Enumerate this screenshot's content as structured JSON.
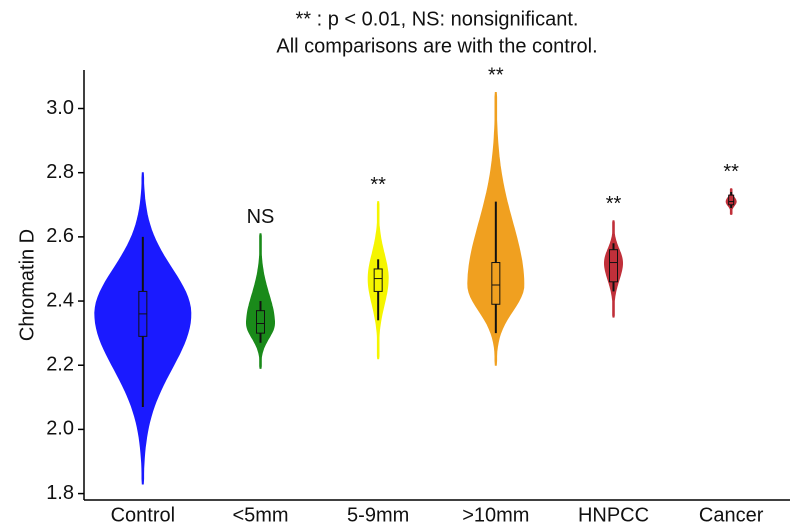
{
  "chart_data": {
    "type": "violin",
    "title": [
      "** : p < 0.01, NS: nonsignificant.",
      "All comparisons are with the control."
    ],
    "y_label": "Chromatin D",
    "categories": [
      "Control",
      "<5mm",
      "5-9mm",
      ">10mm",
      "HNPCC",
      "Cancer"
    ],
    "violins": [
      {
        "min": 1.83,
        "max": 2.8,
        "whislo": 2.07,
        "q1": 2.29,
        "median": 2.36,
        "q3": 2.43,
        "whishi": 2.6,
        "color": "#1a1aff"
      },
      {
        "min": 2.19,
        "max": 2.61,
        "whislo": 2.27,
        "q1": 2.3,
        "median": 2.33,
        "q3": 2.37,
        "whishi": 2.4,
        "color": "#1a8a1a"
      },
      {
        "min": 2.22,
        "max": 2.71,
        "whislo": 2.34,
        "q1": 2.43,
        "median": 2.47,
        "q3": 2.5,
        "whishi": 2.53,
        "color": "#f5f500"
      },
      {
        "min": 2.2,
        "max": 3.05,
        "whislo": 2.3,
        "q1": 2.39,
        "median": 2.45,
        "q3": 2.52,
        "whishi": 2.71,
        "color": "#f0a020"
      },
      {
        "min": 2.35,
        "max": 2.65,
        "whislo": 2.43,
        "q1": 2.46,
        "median": 2.52,
        "q3": 2.56,
        "whishi": 2.58,
        "color": "#c0303a"
      },
      {
        "min": 2.67,
        "max": 2.75,
        "whislo": 2.69,
        "q1": 2.7,
        "median": 2.71,
        "q3": 2.73,
        "whishi": 2.74,
        "color": "#c0303a"
      }
    ],
    "annotations": [
      null,
      "NS",
      "**",
      "**",
      "**",
      "**"
    ],
    "ylim": [
      1.78,
      3.12
    ],
    "yticks": [
      1.8,
      {
        "value": 2,
        "label": "2.0"
      },
      2.2,
      2.4,
      2.6,
      2.8,
      {
        "value": 3,
        "label": "3.0"
      }
    ],
    "grid": false
  }
}
